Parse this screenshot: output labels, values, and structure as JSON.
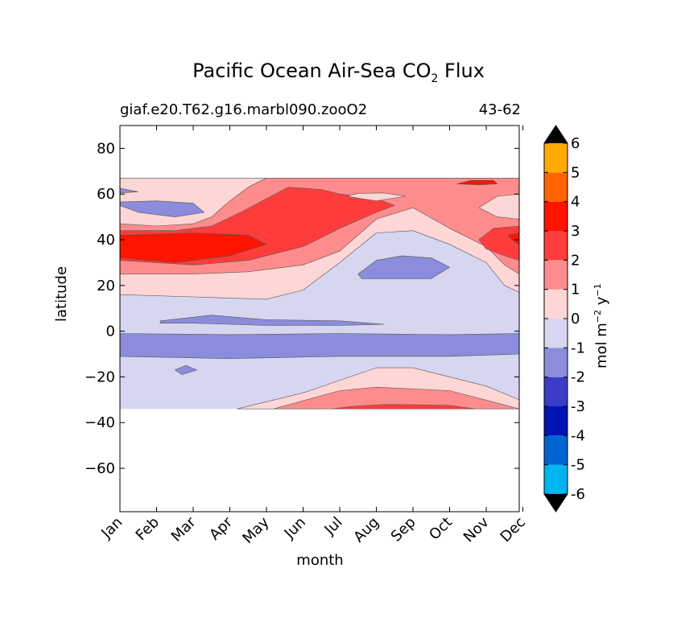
{
  "title": {
    "main": "Pacific Ocean Air-Sea CO",
    "subscript": "2",
    "tail": " Flux"
  },
  "subtitle": {
    "left": "giaf.e20.T62.g16.marbl090.zooO2",
    "right": "43-62"
  },
  "colorbar": {
    "label_main": "mol m",
    "label_exp1": "−2",
    "label_mid": " y",
    "label_exp2": "−1"
  },
  "chart_data": {
    "type": "heatmap",
    "subtype": "filled-contour",
    "title": "Pacific Ocean Air-Sea CO2 Flux",
    "subtitle_left": "giaf.e20.T62.g16.marbl090.zooO2",
    "subtitle_right": "43-62",
    "xlabel": "month",
    "ylabel": "latitude",
    "x_ticklabels": [
      "Jan",
      "Feb",
      "Mar",
      "Apr",
      "May",
      "Jun",
      "Jul",
      "Aug",
      "Sep",
      "Oct",
      "Nov",
      "Dec"
    ],
    "x_ticks": [
      0,
      1,
      2,
      3,
      4,
      5,
      6,
      7,
      8,
      9,
      10,
      11
    ],
    "xlim": [
      0,
      10.9
    ],
    "y_ticks": [
      -60,
      -40,
      -20,
      0,
      20,
      40,
      60,
      80
    ],
    "y_ticklabels": [
      "−60",
      "−40",
      "−20",
      "0",
      "20",
      "40",
      "60",
      "80"
    ],
    "ylim": [
      -79,
      90
    ],
    "data_extent_lat": [
      -34,
      67
    ],
    "colorbar_levels": [
      -6,
      -5,
      -4,
      -3,
      -2,
      -1,
      0,
      1,
      2,
      3,
      4,
      5,
      6
    ],
    "colorbar_ticklabels": [
      "-6",
      "-5",
      "-4",
      "-3",
      "-2",
      "-1",
      "0",
      "1",
      "2",
      "3",
      "4",
      "5",
      "6"
    ],
    "colorbar_colors": [
      "#00ffff",
      "#00b4f0",
      "#0064d2",
      "#0014b4",
      "#3c3cc8",
      "#8c8cdc",
      "#d6d6f0",
      "#ffd6d6",
      "#ff8c8c",
      "#ff3c3c",
      "#ff1400",
      "#ff6400",
      "#ffaa00",
      "#ffff00"
    ],
    "colorbar_extend": "both",
    "colorbar_label": "mol m-2 y-1",
    "background_level_color": "#d6d6f0",
    "regions": [
      {
        "level": "-1 to -2",
        "color": "#8c8cdc",
        "desc": "equatorial band",
        "points": [
          [
            0,
            -1
          ],
          [
            3,
            -1.5
          ],
          [
            6,
            -1
          ],
          [
            9,
            -1.5
          ],
          [
            10.9,
            -1
          ],
          [
            10.9,
            -10
          ],
          [
            9,
            -11
          ],
          [
            6,
            -11
          ],
          [
            3,
            -12
          ],
          [
            0,
            -11
          ]
        ]
      },
      {
        "level": "-1 to -2",
        "color": "#8c8cdc",
        "desc": "south equatorial tongue",
        "points": [
          [
            1.8,
            -15
          ],
          [
            2.1,
            -17
          ],
          [
            1.7,
            -19
          ],
          [
            1.5,
            -17
          ]
        ]
      },
      {
        "level": "-1 to -2",
        "color": "#8c8cdc",
        "desc": "north equatorial strip",
        "points": [
          [
            1.1,
            4.5
          ],
          [
            2.5,
            7
          ],
          [
            4,
            5
          ],
          [
            6,
            4.5
          ],
          [
            7.2,
            3
          ],
          [
            6,
            2.5
          ],
          [
            4,
            2.5
          ],
          [
            2,
            3.5
          ],
          [
            1.1,
            3.5
          ]
        ]
      },
      {
        "level": "-1 to -2",
        "color": "#8c8cdc",
        "desc": "subtropical north patch",
        "points": [
          [
            6.5,
            25
          ],
          [
            7,
            31
          ],
          [
            7.7,
            33
          ],
          [
            8.5,
            32
          ],
          [
            9,
            28
          ],
          [
            8.5,
            23
          ],
          [
            7.5,
            23
          ],
          [
            6.6,
            23
          ]
        ]
      },
      {
        "level": "-1 to -2",
        "color": "#8c8cdc",
        "desc": "subpolar patch",
        "points": [
          [
            0,
            55
          ],
          [
            0.5,
            52
          ],
          [
            1.5,
            50
          ],
          [
            2.3,
            52
          ],
          [
            2,
            56
          ],
          [
            1,
            57
          ],
          [
            0,
            56.5
          ]
        ]
      },
      {
        "level": "-1 to -2",
        "color": "#8c8cdc",
        "desc": "subpolar thin strip",
        "points": [
          [
            0,
            62.5
          ],
          [
            0.5,
            61
          ],
          [
            0,
            60.5
          ]
        ]
      },
      {
        "level": "0 to 1",
        "color": "#ffd6d6",
        "desc": "north mid latitude band",
        "points": [
          [
            0,
            16
          ],
          [
            2,
            15
          ],
          [
            4,
            14
          ],
          [
            5,
            18
          ],
          [
            6,
            30
          ],
          [
            7,
            43
          ],
          [
            8,
            44
          ],
          [
            9,
            38
          ],
          [
            10,
            30
          ],
          [
            10.5,
            20
          ],
          [
            10.9,
            17
          ],
          [
            10.9,
            67
          ],
          [
            0,
            67
          ]
        ]
      },
      {
        "level": "1 to 2",
        "color": "#ff8c8c",
        "desc": "north band",
        "points": [
          [
            0,
            25
          ],
          [
            2,
            25
          ],
          [
            3.5,
            26
          ],
          [
            5,
            29
          ],
          [
            6,
            35
          ],
          [
            7,
            49
          ],
          [
            8,
            54
          ],
          [
            9,
            45
          ],
          [
            10,
            37
          ],
          [
            10.5,
            29
          ],
          [
            10.9,
            25
          ],
          [
            10.9,
            67
          ],
          [
            4,
            67
          ],
          [
            3.5,
            63
          ],
          [
            3,
            57
          ],
          [
            2.5,
            50
          ],
          [
            2,
            47
          ],
          [
            1,
            46
          ],
          [
            0,
            47
          ]
        ]
      },
      {
        "level": "2 to 3",
        "color": "#ff3c3c",
        "desc": "north strong band",
        "points": [
          [
            0,
            31
          ],
          [
            2,
            29
          ],
          [
            3.5,
            31
          ],
          [
            5,
            37
          ],
          [
            6,
            45
          ],
          [
            7,
            52
          ],
          [
            7.5,
            55
          ],
          [
            7,
            58
          ],
          [
            6,
            60
          ],
          [
            5.5,
            62
          ],
          [
            4.6,
            63
          ],
          [
            4,
            58
          ],
          [
            3.3,
            52
          ],
          [
            2.5,
            46
          ],
          [
            1.5,
            44
          ],
          [
            0,
            44
          ]
        ]
      },
      {
        "level": "2 to 3",
        "color": "#ff3c3c",
        "desc": "north east strong patch",
        "points": [
          [
            9.8,
            40
          ],
          [
            10.2,
            45
          ],
          [
            10.9,
            46
          ],
          [
            10.9,
            31
          ],
          [
            10.5,
            33
          ],
          [
            10,
            36
          ]
        ]
      },
      {
        "level": "3 to 4",
        "color": "#ff1400",
        "desc": "north west core",
        "points": [
          [
            0,
            32
          ],
          [
            1.5,
            30
          ],
          [
            3,
            33
          ],
          [
            4,
            38
          ],
          [
            3.5,
            42
          ],
          [
            2,
            43
          ],
          [
            0,
            42
          ]
        ]
      },
      {
        "level": "3 to 4",
        "color": "#ff1400",
        "desc": "north east small core",
        "points": [
          [
            10.6,
            42
          ],
          [
            10.9,
            43
          ],
          [
            10.9,
            38
          ],
          [
            10.7,
            40
          ]
        ]
      },
      {
        "level": "3 to 4",
        "color": "#ff1400",
        "desc": "high latitude patches",
        "points": [
          [
            9.2,
            64.5
          ],
          [
            9.6,
            66
          ],
          [
            10.2,
            66
          ],
          [
            10.3,
            64.5
          ],
          [
            9.8,
            64
          ]
        ]
      },
      {
        "level": "0 to 1",
        "color": "#ffd6d6",
        "desc": "northern high latitude light patch",
        "points": [
          [
            6.2,
            59
          ],
          [
            7,
            57
          ],
          [
            7.8,
            59
          ],
          [
            7.2,
            60.5
          ],
          [
            6.5,
            60.3
          ]
        ]
      },
      {
        "level": "0 to 1",
        "color": "#ffd6d6",
        "desc": "northern east light patch",
        "points": [
          [
            9.8,
            54
          ],
          [
            10.3,
            50
          ],
          [
            10.9,
            49
          ],
          [
            10.9,
            60
          ],
          [
            10.3,
            59
          ]
        ]
      },
      {
        "level": "0 to 1",
        "color": "#ffd6d6",
        "desc": "southern light band",
        "points": [
          [
            3.2,
            -34
          ],
          [
            5,
            -27
          ],
          [
            7,
            -16
          ],
          [
            8,
            -16
          ],
          [
            10,
            -24
          ],
          [
            10.9,
            -30
          ],
          [
            10.9,
            -34
          ]
        ]
      },
      {
        "level": "1 to 2",
        "color": "#ff8c8c",
        "desc": "southern band",
        "points": [
          [
            4.2,
            -34
          ],
          [
            6,
            -26
          ],
          [
            7,
            -24.5
          ],
          [
            9,
            -26
          ],
          [
            10.2,
            -31
          ],
          [
            10.9,
            -34
          ]
        ]
      },
      {
        "level": "2 to 3",
        "color": "#ff3c3c",
        "desc": "southern core",
        "points": [
          [
            5.8,
            -34
          ],
          [
            6.3,
            -33
          ],
          [
            7.3,
            -32
          ],
          [
            9,
            -32.5
          ],
          [
            9.7,
            -34
          ]
        ]
      }
    ]
  }
}
